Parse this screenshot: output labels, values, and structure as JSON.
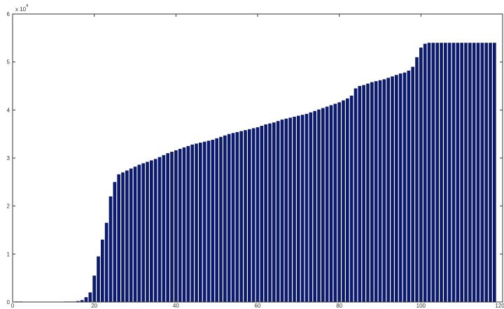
{
  "chart_data": {
    "type": "bar",
    "title": "",
    "xlabel": "",
    "ylabel": "",
    "xlim": [
      0,
      120
    ],
    "ylim": [
      0,
      6
    ],
    "y_exponent_label": "x 10",
    "y_exponent_power": "4",
    "x_ticks": [
      "0",
      "20",
      "40",
      "60",
      "80",
      "100",
      "120"
    ],
    "y_ticks": [
      "0",
      "1",
      "2",
      "3",
      "4",
      "5",
      "6"
    ],
    "grid": false,
    "legend": "none",
    "colors": {
      "bar": "#0d1b6e",
      "axes": "#333333",
      "background": "#ffffff"
    },
    "x": [
      1,
      2,
      3,
      4,
      5,
      6,
      7,
      8,
      9,
      10,
      11,
      12,
      13,
      14,
      15,
      16,
      17,
      18,
      19,
      20,
      21,
      22,
      23,
      24,
      25,
      26,
      27,
      28,
      29,
      30,
      31,
      32,
      33,
      34,
      35,
      36,
      37,
      38,
      39,
      40,
      41,
      42,
      43,
      44,
      45,
      46,
      47,
      48,
      49,
      50,
      51,
      52,
      53,
      54,
      55,
      56,
      57,
      58,
      59,
      60,
      61,
      62,
      63,
      64,
      65,
      66,
      67,
      68,
      69,
      70,
      71,
      72,
      73,
      74,
      75,
      76,
      77,
      78,
      79,
      80,
      81,
      82,
      83,
      84,
      85,
      86,
      87,
      88,
      89,
      90,
      91,
      92,
      93,
      94,
      95,
      96,
      97,
      98,
      99,
      100,
      101,
      102,
      103,
      104,
      105,
      106,
      107,
      108,
      109,
      110,
      111,
      112,
      113,
      114,
      115,
      116,
      117,
      118
    ],
    "values": [
      0.01,
      0.01,
      0,
      0,
      0,
      0,
      0,
      0,
      0,
      0,
      0,
      0,
      0.01,
      0.01,
      0.01,
      0.02,
      0.04,
      0.1,
      0.2,
      0.55,
      0.95,
      1.3,
      1.65,
      2.2,
      2.5,
      2.66,
      2.7,
      2.74,
      2.78,
      2.82,
      2.86,
      2.89,
      2.92,
      2.95,
      2.98,
      3.02,
      3.06,
      3.1,
      3.13,
      3.16,
      3.19,
      3.22,
      3.25,
      3.28,
      3.3,
      3.32,
      3.34,
      3.36,
      3.38,
      3.41,
      3.44,
      3.47,
      3.5,
      3.52,
      3.54,
      3.56,
      3.58,
      3.6,
      3.62,
      3.64,
      3.67,
      3.7,
      3.72,
      3.74,
      3.77,
      3.8,
      3.82,
      3.84,
      3.86,
      3.88,
      3.9,
      3.92,
      3.95,
      3.98,
      4.01,
      4.04,
      4.07,
      4.1,
      4.13,
      4.16,
      4.2,
      4.24,
      4.3,
      4.45,
      4.5,
      4.52,
      4.55,
      4.58,
      4.6,
      4.62,
      4.64,
      4.67,
      4.7,
      4.73,
      4.76,
      4.78,
      4.82,
      4.9,
      5.1,
      5.3,
      5.38,
      5.4,
      5.4,
      5.4,
      5.4,
      5.4,
      5.4,
      5.4,
      5.4,
      5.4,
      5.4,
      5.4,
      5.4,
      5.4,
      5.4,
      5.4,
      5.4,
      5.4
    ]
  }
}
